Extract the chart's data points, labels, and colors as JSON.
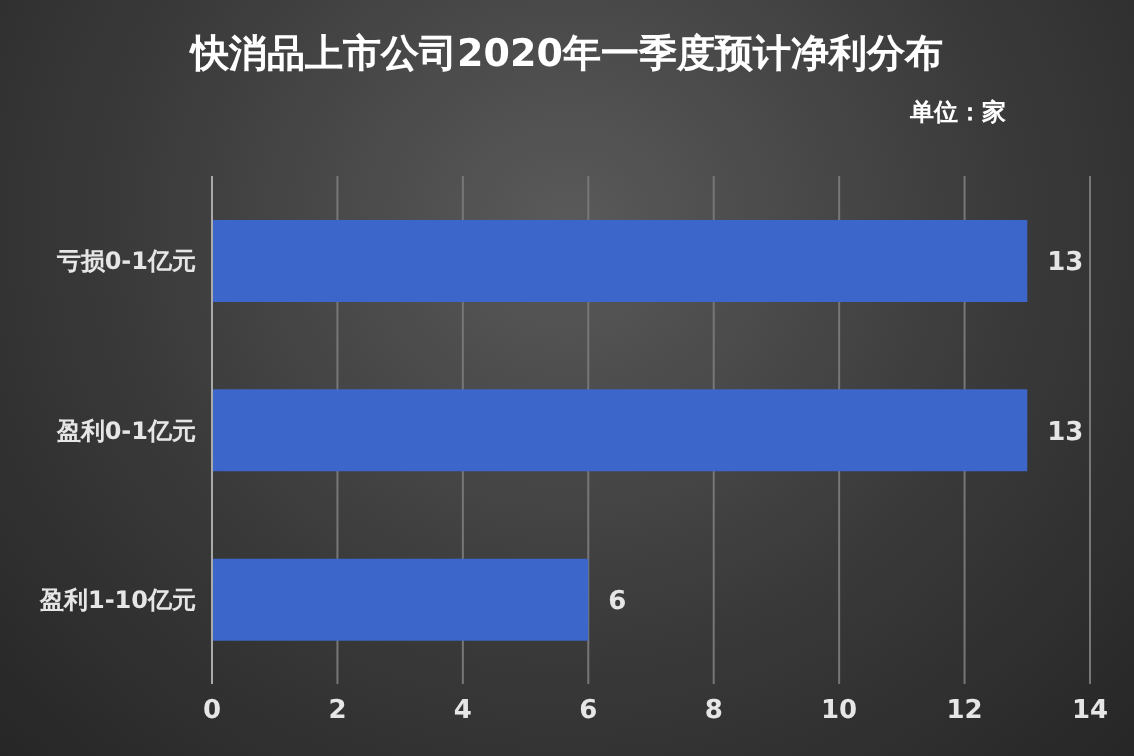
{
  "chart_data": {
    "type": "bar",
    "orientation": "horizontal",
    "title": "快消品上市公司2020年一季度预计净利分布",
    "subtitle": "单位：家",
    "categories": [
      "亏损0-1亿元",
      "盈利0-1亿元",
      "盈利1-10亿元"
    ],
    "values": [
      13,
      13,
      6
    ],
    "color": "#3c66c9",
    "xlim": [
      0,
      14
    ],
    "xticks": [
      0,
      2,
      4,
      6,
      8,
      10,
      12,
      14
    ],
    "grid": "x",
    "data_labels": true
  }
}
